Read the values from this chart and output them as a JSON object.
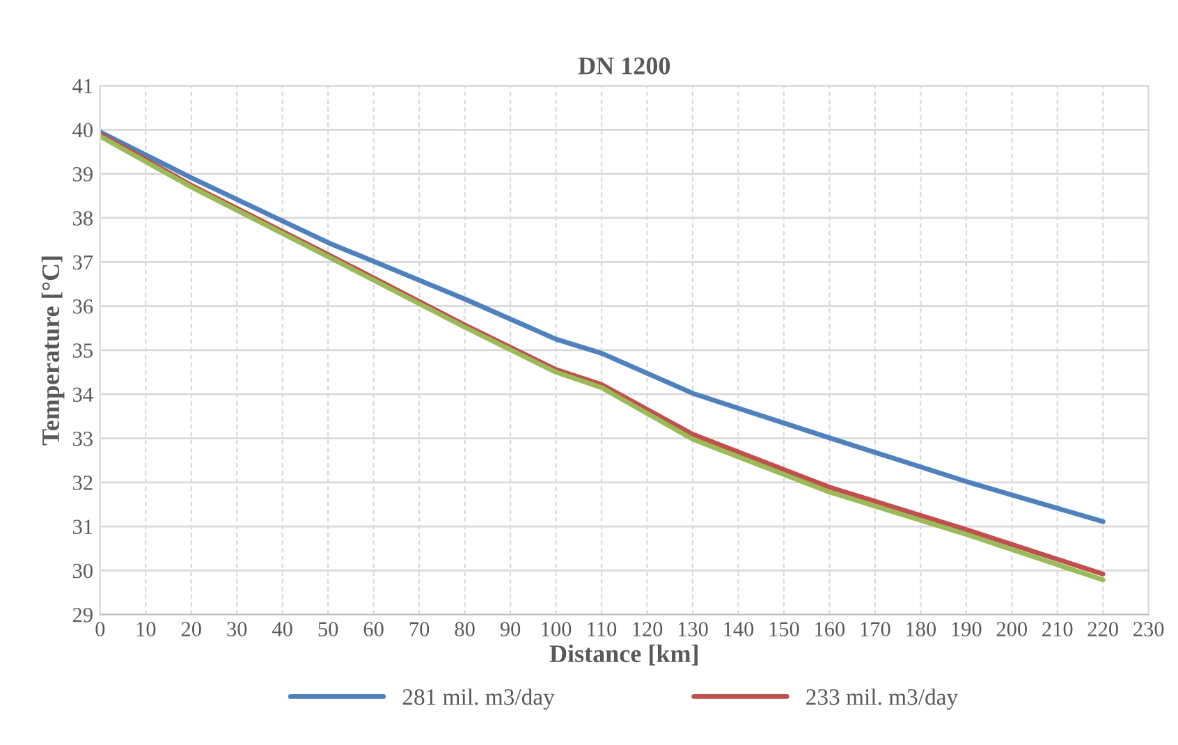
{
  "chart_data": {
    "type": "line",
    "title": "DN 1200",
    "xlabel": "Distance [km]",
    "ylabel": "Temperature [°C]",
    "x": [
      0,
      20,
      50,
      80,
      100,
      110,
      130,
      160,
      190,
      220
    ],
    "series": [
      {
        "name": "281 mil. m3/day",
        "color": "#4f81bd",
        "values": [
          39.95,
          38.91,
          37.44,
          36.16,
          35.25,
          34.93,
          34.02,
          33.01,
          32.02,
          31.11
        ]
      },
      {
        "name": "233 mil. m3/day",
        "color": "#c0504d",
        "values": [
          39.9,
          38.74,
          37.17,
          35.57,
          34.56,
          34.22,
          33.09,
          31.89,
          30.93,
          29.92
        ]
      },
      {
        "color": "#9bbb59",
        "values": [
          39.85,
          38.7,
          37.12,
          35.52,
          34.5,
          34.15,
          32.98,
          31.78,
          30.82,
          29.79
        ]
      }
    ],
    "xlim": [
      0,
      230
    ],
    "xticks": [
      0,
      10,
      20,
      30,
      40,
      50,
      60,
      70,
      80,
      90,
      100,
      110,
      120,
      130,
      140,
      150,
      160,
      170,
      180,
      190,
      200,
      210,
      220,
      230
    ],
    "ylim": [
      29,
      41
    ],
    "yticks": [
      29,
      30,
      31,
      32,
      33,
      34,
      35,
      36,
      37,
      38,
      39,
      40,
      41
    ],
    "grid": true,
    "legend": "bottom",
    "marker": "none",
    "line_style": "solid"
  }
}
